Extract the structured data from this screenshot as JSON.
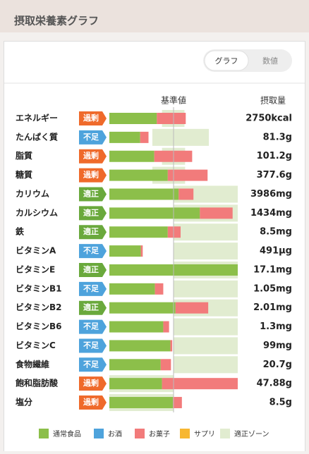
{
  "header": {
    "title": "摂取栄養素グラフ"
  },
  "toggle": {
    "options": [
      "グラフ",
      "数値"
    ],
    "active": 0
  },
  "chart_data": {
    "type": "bar",
    "reference_label": "基準値",
    "intake_label": "摂取量",
    "reference": 100,
    "xlim": [
      0,
      200
    ],
    "categories": [
      "エネルギー",
      "たんぱく質",
      "脂質",
      "糖質",
      "カリウム",
      "カルシウム",
      "鉄",
      "ビタミンA",
      "ビタミンE",
      "ビタミンB1",
      "ビタミンB2",
      "ビタミンB6",
      "ビタミンC",
      "食物繊維",
      "飽和脂肪酸",
      "塩分"
    ],
    "badges": [
      "過剰",
      "不足",
      "過剰",
      "過剰",
      "適正",
      "適正",
      "適正",
      "不足",
      "適正",
      "不足",
      "適正",
      "不足",
      "不足",
      "不足",
      "過剰",
      "過剰"
    ],
    "badge_colors": {
      "過剰": "#ef6a2b",
      "不足": "#4ea3dc",
      "適正": "#6aa93c"
    },
    "intake": [
      "2750kcal",
      "81.3g",
      "101.2g",
      "377.6g",
      "3986mg",
      "1434mg",
      "8.5mg",
      "491μg",
      "17.1mg",
      "1.05mg",
      "2.01mg",
      "1.3mg",
      "99mg",
      "20.7g",
      "47.88g",
      "8.5g"
    ],
    "series": [
      {
        "name": "通常食品",
        "color": "#8cbf4a",
        "values": [
          74,
          48,
          70,
          91,
          108,
          141,
          91,
          49,
          200,
          71,
          103,
          84,
          95,
          80,
          82,
          99
        ]
      },
      {
        "name": "お酒",
        "color": "#4ea3dc",
        "values": [
          0,
          0,
          0,
          0,
          0,
          0,
          0,
          0,
          0,
          0,
          0,
          0,
          0,
          0,
          0,
          0
        ]
      },
      {
        "name": "お菓子",
        "color": "#f27b7b",
        "values": [
          45,
          13,
          59,
          62,
          23,
          51,
          20,
          3,
          0,
          13,
          51,
          9,
          3,
          16,
          118,
          14
        ]
      },
      {
        "name": "サプリ",
        "color": "#f7b731",
        "values": [
          0,
          0,
          0,
          0,
          0,
          0,
          0,
          0,
          0,
          0,
          0,
          0,
          0,
          0,
          0,
          0
        ]
      }
    ],
    "zone": {
      "name": "適正ゾーン",
      "color": "#e1ecd0",
      "ranges": [
        [
          82,
          117
        ],
        [
          67,
          155
        ],
        [
          82,
          118
        ],
        [
          67,
          118
        ],
        [
          100,
          200
        ],
        [
          100,
          200
        ],
        [
          100,
          200
        ],
        [
          100,
          200
        ],
        [
          100,
          200
        ],
        [
          100,
          200
        ],
        [
          100,
          200
        ],
        [
          100,
          200
        ],
        [
          100,
          200
        ],
        [
          100,
          200
        ],
        [
          0,
          100
        ],
        [
          0,
          100
        ]
      ]
    }
  }
}
